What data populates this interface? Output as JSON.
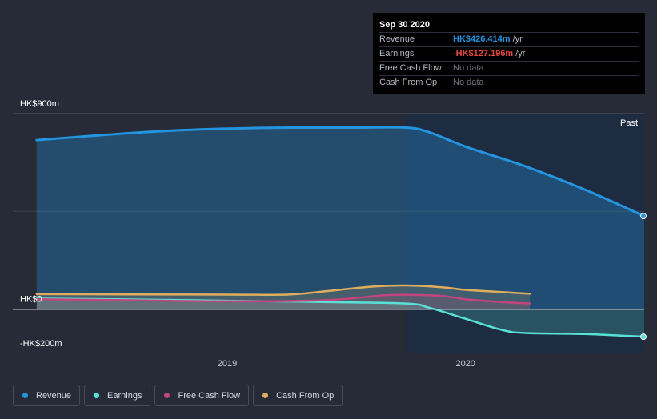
{
  "chart_data": {
    "type": "area",
    "y_tick_labels": [
      "HK$900m",
      "HK$0",
      "-HK$200m"
    ],
    "ylim": [
      -200,
      900
    ],
    "x_ticks": [
      {
        "label": "2019",
        "x": 2019.0
      },
      {
        "label": "2020",
        "x": 2020.0
      }
    ],
    "xlim": [
      2018.1,
      2020.75
    ],
    "past_label": "Past",
    "past_start": 2019.75,
    "series": [
      {
        "name": "Revenue",
        "color": "#2394df",
        "points": [
          [
            2018.2,
            775
          ],
          [
            2018.5,
            800
          ],
          [
            2018.8,
            820
          ],
          [
            2019.1,
            830
          ],
          [
            2019.3,
            832
          ],
          [
            2019.55,
            832
          ],
          [
            2019.75,
            832
          ],
          [
            2019.85,
            810
          ],
          [
            2020.0,
            745
          ],
          [
            2020.25,
            655
          ],
          [
            2020.5,
            548
          ],
          [
            2020.75,
            426.414
          ]
        ]
      },
      {
        "name": "Earnings",
        "color": "#58e1d6",
        "points": [
          [
            2018.2,
            48
          ],
          [
            2018.6,
            44
          ],
          [
            2019.0,
            38
          ],
          [
            2019.4,
            32
          ],
          [
            2019.75,
            25
          ],
          [
            2019.85,
            5
          ],
          [
            2020.0,
            -45
          ],
          [
            2020.15,
            -95
          ],
          [
            2020.25,
            -110
          ],
          [
            2020.5,
            -115
          ],
          [
            2020.75,
            -127.196
          ]
        ]
      },
      {
        "name": "Free Cash Flow",
        "color": "#c4457d",
        "points": [
          [
            2018.2,
            45
          ],
          [
            2018.6,
            40
          ],
          [
            2019.0,
            35
          ],
          [
            2019.4,
            40
          ],
          [
            2019.65,
            62
          ],
          [
            2019.75,
            65
          ],
          [
            2019.9,
            60
          ],
          [
            2020.0,
            45
          ],
          [
            2020.15,
            32
          ],
          [
            2020.27,
            25
          ]
        ]
      },
      {
        "name": "Cash From Op",
        "color": "#e0ad5e",
        "points": [
          [
            2018.2,
            68
          ],
          [
            2018.6,
            67
          ],
          [
            2019.0,
            66
          ],
          [
            2019.25,
            66
          ],
          [
            2019.4,
            80
          ],
          [
            2019.6,
            102
          ],
          [
            2019.75,
            108
          ],
          [
            2019.9,
            100
          ],
          [
            2020.0,
            88
          ],
          [
            2020.15,
            78
          ],
          [
            2020.27,
            70
          ]
        ]
      }
    ]
  },
  "tooltip": {
    "date": "Sep 30 2020",
    "rows": [
      {
        "label": "Revenue",
        "value": "HK$426.414m",
        "unit": "/yr",
        "color": "#2394df"
      },
      {
        "label": "Earnings",
        "value": "-HK$127.196m",
        "unit": "/yr",
        "color": "#e8473d"
      },
      {
        "label": "Free Cash Flow",
        "value": "No data",
        "unit": "",
        "color": "#6e737d"
      },
      {
        "label": "Cash From Op",
        "value": "No data",
        "unit": "",
        "color": "#6e737d"
      }
    ]
  },
  "legend": [
    {
      "label": "Revenue",
      "color": "#2394df"
    },
    {
      "label": "Earnings",
      "color": "#58e1d6"
    },
    {
      "label": "Free Cash Flow",
      "color": "#c4457d"
    },
    {
      "label": "Cash From Op",
      "color": "#e0ad5e"
    }
  ]
}
